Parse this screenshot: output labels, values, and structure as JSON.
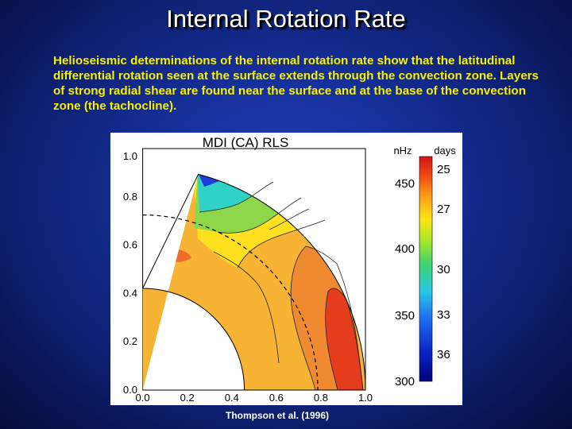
{
  "slide": {
    "title": "Internal Rotation Rate",
    "body": "Helioseismic determinations of the internal rotation rate show that the latitudinal differential rotation seen at the surface extends through the convection zone. Layers of strong radial shear are found near the surface and at the base of the convection zone (the tachocline).",
    "credit": "Thompson et al. (1996)"
  },
  "figure": {
    "title": "MDI (CA) RLS",
    "x_ticks": [
      "0.0",
      "0.2",
      "0.4",
      "0.6",
      "0.8",
      "1.0"
    ],
    "y_ticks": [
      "0.0",
      "0.2",
      "0.4",
      "0.6",
      "0.8",
      "1.0"
    ],
    "colorbar": {
      "left_unit": "nHz",
      "right_unit": "days",
      "nhz_labels": [
        "450",
        "400",
        "350",
        "300"
      ],
      "days_labels": [
        "25",
        "27",
        "30",
        "33",
        "36"
      ]
    },
    "colors": {
      "red": "#e63c1e",
      "orange": "#f5a020",
      "yellow": "#ffe020",
      "green": "#5ad23c",
      "cyan": "#30d2c8",
      "blue": "#1e3cdc"
    }
  }
}
